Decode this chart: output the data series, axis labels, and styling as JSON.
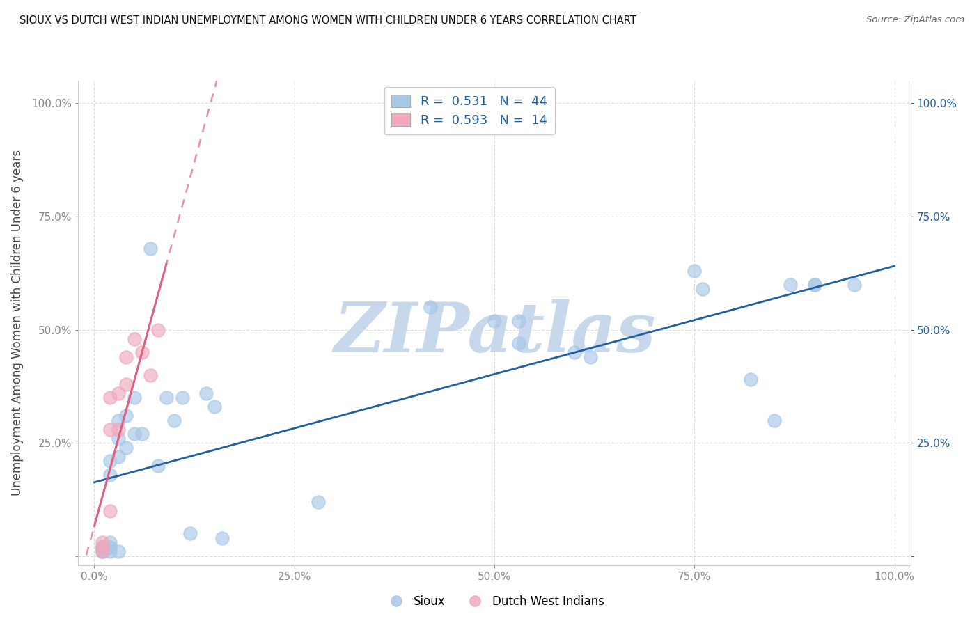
{
  "title": "SIOUX VS DUTCH WEST INDIAN UNEMPLOYMENT AMONG WOMEN WITH CHILDREN UNDER 6 YEARS CORRELATION CHART",
  "source": "Source: ZipAtlas.com",
  "ylabel": "Unemployment Among Women with Children Under 6 years",
  "xlabel": "",
  "xlim": [
    -0.02,
    1.02
  ],
  "ylim": [
    -0.02,
    1.05
  ],
  "xtick_labels": [
    "0.0%",
    "25.0%",
    "50.0%",
    "75.0%",
    "100.0%"
  ],
  "xtick_vals": [
    0.0,
    0.25,
    0.5,
    0.75,
    1.0
  ],
  "ytick_labels": [
    "",
    "25.0%",
    "50.0%",
    "75.0%",
    "100.0%"
  ],
  "ytick_vals": [
    0.0,
    0.25,
    0.5,
    0.75,
    1.0
  ],
  "ytick_right_labels": [
    "",
    "25.0%",
    "50.0%",
    "75.0%",
    "100.0%"
  ],
  "sioux_color": "#a8c8e8",
  "dutch_color": "#f0a8bc",
  "sioux_R": 0.531,
  "sioux_N": 44,
  "dutch_R": 0.593,
  "dutch_N": 14,
  "legend_label_sioux": "Sioux",
  "legend_label_dutch": "Dutch West Indians",
  "sioux_x": [
    0.01,
    0.01,
    0.01,
    0.01,
    0.01,
    0.02,
    0.02,
    0.02,
    0.02,
    0.02,
    0.02,
    0.03,
    0.03,
    0.03,
    0.03,
    0.04,
    0.04,
    0.05,
    0.05,
    0.06,
    0.07,
    0.08,
    0.09,
    0.1,
    0.11,
    0.12,
    0.14,
    0.15,
    0.16,
    0.28,
    0.42,
    0.5,
    0.53,
    0.53,
    0.6,
    0.62,
    0.75,
    0.76,
    0.82,
    0.85,
    0.87,
    0.9,
    0.9,
    0.95
  ],
  "sioux_y": [
    0.01,
    0.01,
    0.02,
    0.02,
    0.02,
    0.01,
    0.02,
    0.02,
    0.03,
    0.18,
    0.21,
    0.01,
    0.22,
    0.26,
    0.3,
    0.24,
    0.31,
    0.27,
    0.35,
    0.27,
    0.68,
    0.2,
    0.35,
    0.3,
    0.35,
    0.05,
    0.36,
    0.33,
    0.04,
    0.12,
    0.55,
    0.52,
    0.52,
    0.47,
    0.45,
    0.44,
    0.63,
    0.59,
    0.39,
    0.3,
    0.6,
    0.6,
    0.6,
    0.6
  ],
  "dutch_x": [
    0.01,
    0.01,
    0.01,
    0.02,
    0.02,
    0.02,
    0.03,
    0.03,
    0.04,
    0.04,
    0.05,
    0.06,
    0.07,
    0.08
  ],
  "dutch_y": [
    0.01,
    0.02,
    0.03,
    0.1,
    0.28,
    0.35,
    0.28,
    0.36,
    0.38,
    0.44,
    0.48,
    0.45,
    0.4,
    0.5
  ],
  "sioux_line_color": "#2060a0",
  "dutch_line_color": "#e06080",
  "background_color": "#ffffff",
  "watermark_text": "ZIPatlas",
  "watermark_color": "#c8d8ec",
  "grid_color": "#e8e8e8",
  "grid_style_major": "-",
  "grid_style_minor": "--"
}
